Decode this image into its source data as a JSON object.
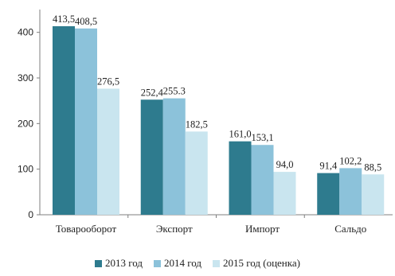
{
  "chart_data": {
    "type": "bar",
    "categories": [
      "Товарооборот",
      "Экспорт",
      "Импорт",
      "Сальдо"
    ],
    "series": [
      {
        "name": "2013 год",
        "color": "#2e7b8e",
        "values": [
          413.5,
          252.4,
          161.0,
          91.4
        ],
        "labels": [
          "413,5",
          "252,4",
          "161,0",
          "91,4"
        ]
      },
      {
        "name": "2014 год",
        "color": "#8cc2da",
        "values": [
          408.5,
          255.3,
          153.1,
          102.2
        ],
        "labels": [
          "408,5",
          "255.3",
          "153,1",
          "102,2"
        ]
      },
      {
        "name": "2015 год (оценка)",
        "color": "#c9e5ef",
        "values": [
          276.5,
          182.5,
          94.0,
          88.5
        ],
        "labels": [
          "276,5",
          "182,5",
          "94,0",
          "88,5"
        ]
      }
    ],
    "ylim": [
      0,
      450
    ],
    "yticks": [
      0,
      100,
      200,
      300,
      400
    ],
    "ytick_labels": [
      "0",
      "100",
      "200",
      "300",
      "400"
    ],
    "grid": false,
    "legend_position": "bottom"
  }
}
